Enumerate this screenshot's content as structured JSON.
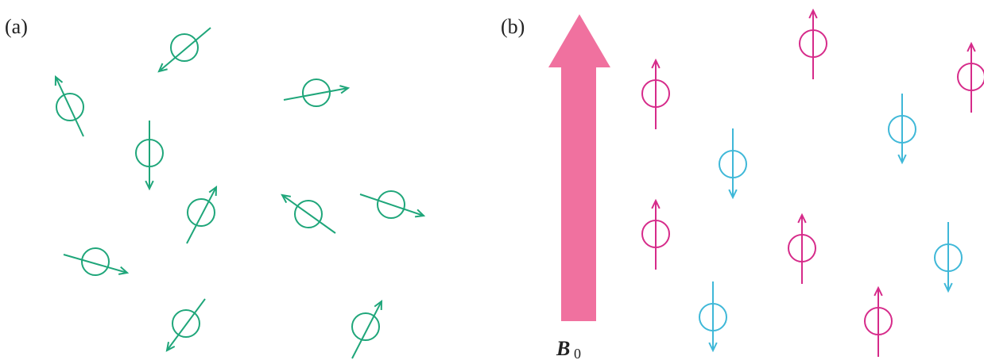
{
  "panels": [
    {
      "label": "(a)"
    },
    {
      "label": "(b)"
    }
  ],
  "field": {
    "symbol": "B",
    "subscript": "0"
  }
}
